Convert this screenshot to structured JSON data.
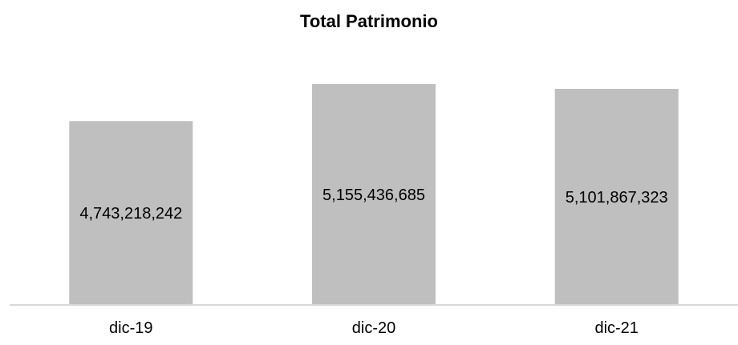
{
  "chart_data": {
    "type": "bar",
    "title": "Total Patrimonio",
    "categories": [
      "dic-19",
      "dic-20",
      "dic-21"
    ],
    "values": [
      4743218242,
      5155436685,
      5101867323
    ],
    "data_labels": [
      "4,743,218,242",
      "5,155,436,685",
      "5,101,867,323"
    ],
    "ylim": [
      2700000000,
      5200000000
    ],
    "bar_color": "#bfbfbf",
    "axis_color": "#d9d9d9",
    "grid": false,
    "legend": "none"
  }
}
